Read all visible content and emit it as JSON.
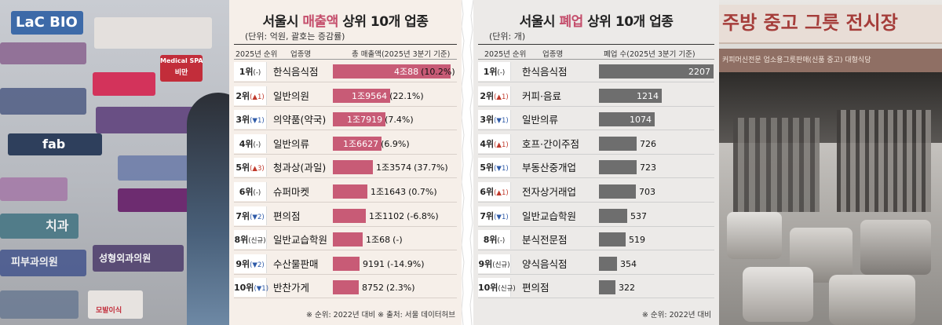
{
  "left_photo": {
    "signs": [
      "LaC BIO",
      "Medical SPA",
      "비만",
      "fab",
      "치과",
      "피부과의원",
      "성형외과의원",
      "모발이식"
    ]
  },
  "right_photo": {
    "sign_main": "주방 중고 그릇 전시장",
    "sign_sub": "커피머신전문 업소용그릇판매(신품 중고) 대형식당"
  },
  "chart_data": [
    {
      "type": "bar",
      "title_prefix": "서울시 ",
      "title_highlight": "매출액",
      "title_suffix": " 상위 10개 업종",
      "subtitle": "(단위: 억원, 괄호는 증감률)",
      "header": {
        "rank": "2025년 순위",
        "name": "업종명",
        "value": "총 매출액(2025년 3분기 기준)"
      },
      "rows": [
        {
          "rank": "1위",
          "change": "(-)",
          "name": "한식음식점",
          "value": 40088,
          "label": "4조88",
          "pct": "(10.2%)"
        },
        {
          "rank": "2위",
          "change": "(▲1)",
          "name": "일반의원",
          "value": 19564,
          "label": "1조9564",
          "pct": "(22.1%)"
        },
        {
          "rank": "3위",
          "change": "(▼1)",
          "name": "의약품(약국)",
          "value": 17919,
          "label": "1조7919",
          "pct": "(7.4%)"
        },
        {
          "rank": "4위",
          "change": "(-)",
          "name": "일반의류",
          "value": 16627,
          "label": "1조6627",
          "pct": "(6.9%)"
        },
        {
          "rank": "5위",
          "change": "(▲3)",
          "name": "청과상(과일)",
          "value": 13574,
          "label": "1조3574",
          "pct": "(37.7%)"
        },
        {
          "rank": "6위",
          "change": "(-)",
          "name": "슈퍼마켓",
          "value": 11643,
          "label": "1조1643",
          "pct": "(0.7%)"
        },
        {
          "rank": "7위",
          "change": "(▼2)",
          "name": "편의점",
          "value": 11102,
          "label": "1조1102",
          "pct": "(-6.8%)"
        },
        {
          "rank": "8위",
          "change": "(신규)",
          "name": "일반교습학원",
          "value": 10068,
          "label": "1조68",
          "pct": "(-)"
        },
        {
          "rank": "9위",
          "change": "(▼2)",
          "name": "수산물판매",
          "value": 9191,
          "label": "9191",
          "pct": "(-14.9%)"
        },
        {
          "rank": "10위",
          "change": "(▼1)",
          "name": "반찬가게",
          "value": 8752,
          "label": "8752",
          "pct": "(2.3%)"
        }
      ],
      "footnote": "※ 순위: 2022년 대비   ※ 출처: 서울 데이터허브",
      "colors": {
        "bar": "#c85b76",
        "highlight": "#c44d6b"
      }
    },
    {
      "type": "bar",
      "title_prefix": "서울시 ",
      "title_highlight": "폐업",
      "title_suffix": " 상위 10개 업종",
      "subtitle": "(단위: 개)",
      "header": {
        "rank": "2025년 순위",
        "name": "업종명",
        "value": "폐업 수(2025년 3분기 기준)"
      },
      "rows": [
        {
          "rank": "1위",
          "change": "(-)",
          "name": "한식음식점",
          "value": 2207,
          "label": "2207"
        },
        {
          "rank": "2위",
          "change": "(▲1)",
          "name": "커피·음료",
          "value": 1214,
          "label": "1214"
        },
        {
          "rank": "3위",
          "change": "(▼1)",
          "name": "일반의류",
          "value": 1074,
          "label": "1074"
        },
        {
          "rank": "4위",
          "change": "(▲1)",
          "name": "호프·간이주점",
          "value": 726,
          "label": "726"
        },
        {
          "rank": "5위",
          "change": "(▼1)",
          "name": "부동산중개업",
          "value": 723,
          "label": "723"
        },
        {
          "rank": "6위",
          "change": "(▲1)",
          "name": "전자상거래업",
          "value": 703,
          "label": "703"
        },
        {
          "rank": "7위",
          "change": "(▼1)",
          "name": "일반교습학원",
          "value": 537,
          "label": "537"
        },
        {
          "rank": "8위",
          "change": "(-)",
          "name": "분식전문점",
          "value": 519,
          "label": "519"
        },
        {
          "rank": "9위",
          "change": "(신규)",
          "name": "양식음식점",
          "value": 354,
          "label": "354"
        },
        {
          "rank": "10위",
          "change": "(신규)",
          "name": "편의점",
          "value": 322,
          "label": "322"
        }
      ],
      "footnote": "※ 순위: 2022년 대비",
      "colors": {
        "bar": "#6e6e6e",
        "highlight": "#c44d6b"
      }
    }
  ]
}
